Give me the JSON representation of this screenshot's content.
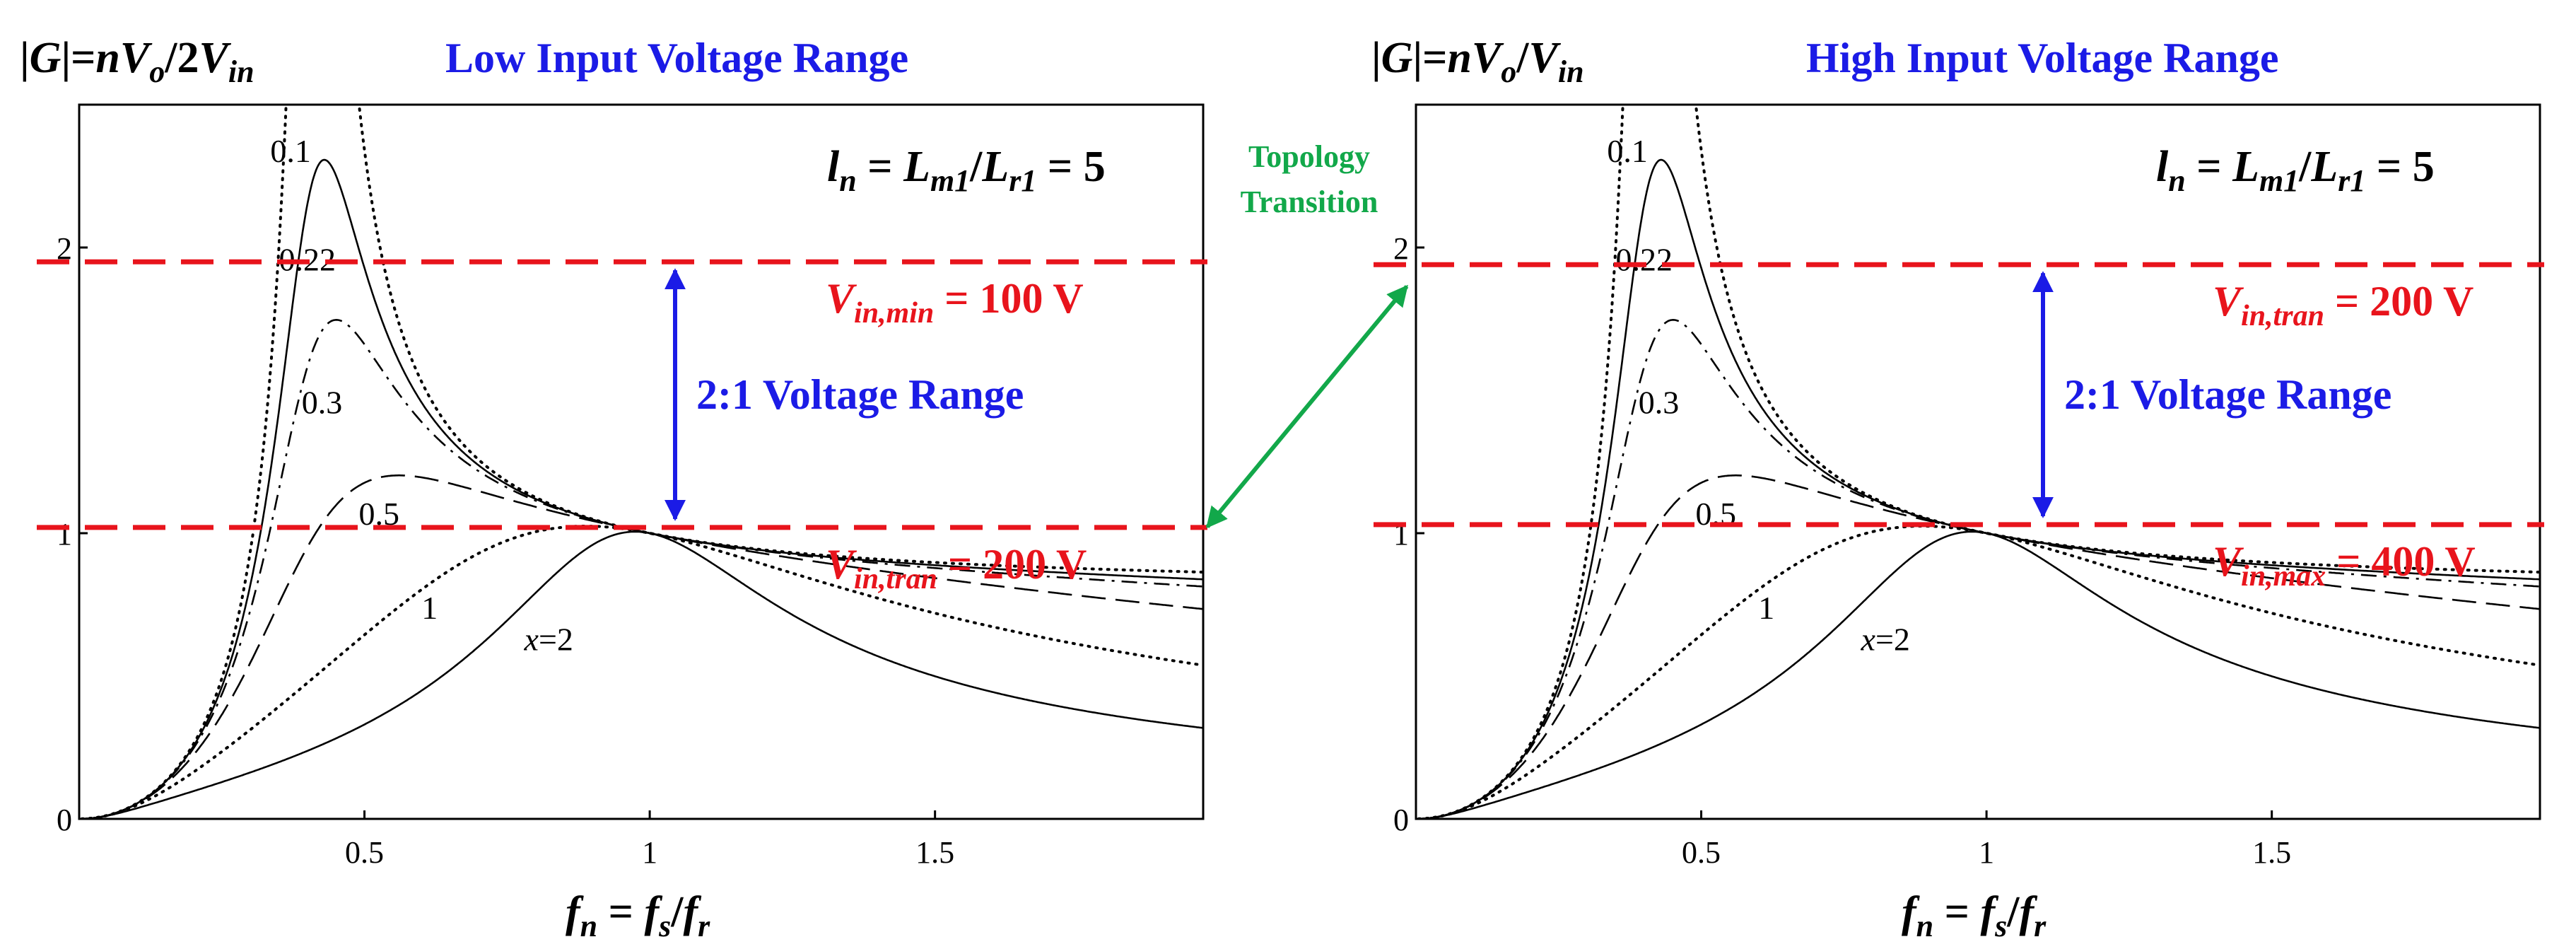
{
  "colors": {
    "red": "#e8141c",
    "blue": "#1b1be6",
    "green": "#12a84a",
    "black": "#000000"
  },
  "transition": {
    "line1": "Topology",
    "line2": "Transition"
  },
  "chart_data": [
    {
      "type": "line",
      "title": "Low Input Voltage Range",
      "ylabel": {
        "prefix": "|",
        "G": "G",
        "mid": "|=",
        "n": "n",
        "V1": "V",
        "o": "o",
        "slash": "/2",
        "V2": "V",
        "in": "in"
      },
      "xlabel": {
        "f1": "f",
        "n": "n",
        "eq": " = ",
        "f2": "f",
        "s": "s",
        "slash": "/",
        "f3": "f",
        "r": "r"
      },
      "ln": {
        "l": "l",
        "n": "n",
        "eq": " = ",
        "L1": "L",
        "m1": "m1",
        "slash": "/",
        "L2": "L",
        "r1": "r1",
        "val": " = 5"
      },
      "xlim": [
        0,
        1.97
      ],
      "ylim": [
        0,
        2.5
      ],
      "xticks": [
        {
          "v": 0.5,
          "label": "0.5"
        },
        {
          "v": 1,
          "label": "1"
        },
        {
          "v": 1.5,
          "label": "1.5"
        }
      ],
      "yticks": [
        {
          "v": 0,
          "label": "0"
        },
        {
          "v": 1,
          "label": "1"
        },
        {
          "v": 2,
          "label": "2"
        }
      ],
      "ln_ratio": 5,
      "series": [
        {
          "name": "x=0.1",
          "x": 0.1,
          "style": "dotted"
        },
        {
          "name": "x=0.22",
          "x": 0.22,
          "style": "solid"
        },
        {
          "name": "x=0.3",
          "x": 0.3,
          "style": "dashdot"
        },
        {
          "name": "x=0.5",
          "x": 0.5,
          "style": "longdash"
        },
        {
          "name": "x=1",
          "x": 1,
          "style": "dotted"
        },
        {
          "name": "x=2",
          "x": 2,
          "style": "solid"
        }
      ],
      "curve_labels": [
        "0.1",
        "0.22",
        "0.3",
        "0.5",
        "1",
        "2"
      ],
      "x2_prefix": "x",
      "hlines": [
        {
          "y": 1.95,
          "sub": "in,min",
          "value": " = 100 V"
        },
        {
          "y": 1.02,
          "sub": "in,tran",
          "value": " = 200 V"
        }
      ],
      "V": "V",
      "range_label": "2:1 Voltage Range"
    },
    {
      "type": "line",
      "title": "High Input Voltage Range",
      "ylabel": {
        "prefix": "|",
        "G": "G",
        "mid": "|=",
        "n": "n",
        "V1": "V",
        "o": "o",
        "slash": "/",
        "V2": "V",
        "in": "in"
      },
      "xlabel": {
        "f1": "f",
        "n": "n",
        "eq": " = ",
        "f2": "f",
        "s": "s",
        "slash": "/",
        "f3": "f",
        "r": "r"
      },
      "ln": {
        "l": "l",
        "n": "n",
        "eq": " = ",
        "L1": "L",
        "m1": "m1",
        "slash": "/",
        "L2": "L",
        "r1": "r1",
        "val": " = 5"
      },
      "xlim": [
        0,
        1.97
      ],
      "ylim": [
        0,
        2.5
      ],
      "xticks": [
        {
          "v": 0.5,
          "label": "0.5"
        },
        {
          "v": 1,
          "label": "1"
        },
        {
          "v": 1.5,
          "label": "1.5"
        }
      ],
      "yticks": [
        {
          "v": 0,
          "label": "0"
        },
        {
          "v": 1,
          "label": "1"
        },
        {
          "v": 2,
          "label": "2"
        }
      ],
      "ln_ratio": 5,
      "series": [
        {
          "name": "x=0.1",
          "x": 0.1,
          "style": "dotted"
        },
        {
          "name": "x=0.22",
          "x": 0.22,
          "style": "solid"
        },
        {
          "name": "x=0.3",
          "x": 0.3,
          "style": "dashdot"
        },
        {
          "name": "x=0.5",
          "x": 0.5,
          "style": "longdash"
        },
        {
          "name": "x=1",
          "x": 1,
          "style": "dotted"
        },
        {
          "name": "x=2",
          "x": 2,
          "style": "solid"
        }
      ],
      "curve_labels": [
        "0.1",
        "0.22",
        "0.3",
        "0.5",
        "1",
        "2"
      ],
      "x2_prefix": "x",
      "hlines": [
        {
          "y": 1.94,
          "sub": "in,tran",
          "value": " = 200 V"
        },
        {
          "y": 1.03,
          "sub": "in,max",
          "value": " = 400 V"
        }
      ],
      "V": "V",
      "range_label": "2:1 Voltage Range"
    }
  ]
}
